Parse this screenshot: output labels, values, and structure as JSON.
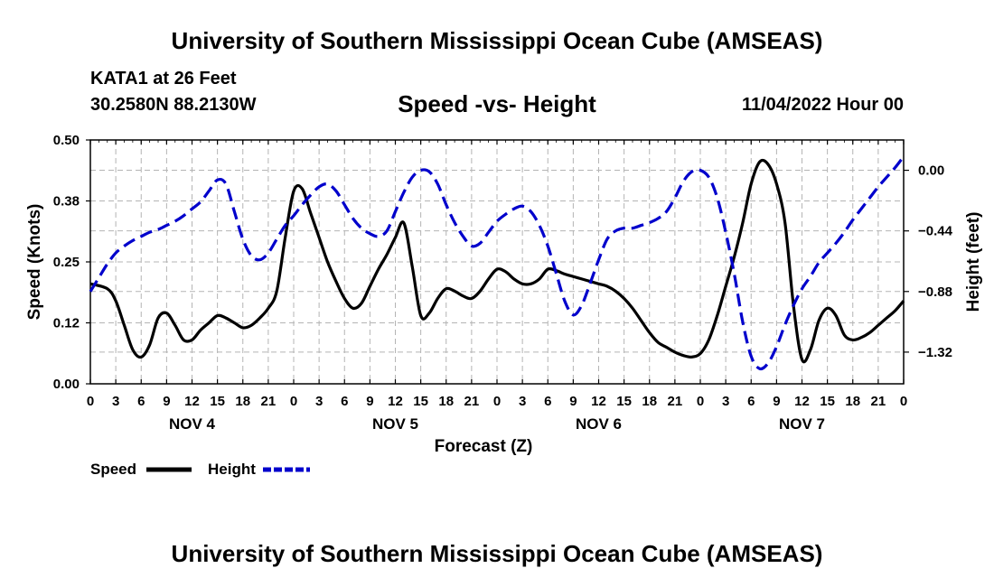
{
  "header": {
    "title": "University of Southern Mississippi Ocean Cube (AMSEAS)",
    "station": "KATA1 at 26 Feet",
    "location": "30.2580N  88.2130W",
    "chart_title": "Speed -vs- Height",
    "issued": "11/04/2022 Hour 00"
  },
  "footer": {
    "title": "University of Southern Mississippi Ocean Cube (AMSEAS)"
  },
  "chart_data": {
    "type": "line",
    "title": "Speed -vs- Height",
    "xlabel": "Forecast (Z)",
    "ylabel": "Speed (Knots)",
    "y2label": "Height (feet)",
    "x_range_hours": [
      0,
      96
    ],
    "xticks_hours": [
      0,
      3,
      6,
      9,
      12,
      15,
      18,
      21,
      24,
      27,
      30,
      33,
      36,
      39,
      42,
      45,
      48,
      51,
      54,
      57,
      60,
      63,
      66,
      69,
      72,
      75,
      78,
      81,
      84,
      87,
      90,
      93,
      96
    ],
    "xtick_labels": [
      "0",
      "3",
      "6",
      "9",
      "12",
      "15",
      "18",
      "21",
      "0",
      "3",
      "6",
      "9",
      "12",
      "15",
      "18",
      "21",
      "0",
      "3",
      "6",
      "9",
      "12",
      "15",
      "18",
      "21",
      "0",
      "3",
      "6",
      "9",
      "12",
      "15",
      "18",
      "21",
      "0"
    ],
    "day_labels": [
      {
        "hour": 12,
        "label": "NOV 4"
      },
      {
        "hour": 36,
        "label": "NOV 5"
      },
      {
        "hour": 60,
        "label": "NOV 6"
      },
      {
        "hour": 84,
        "label": "NOV 7"
      }
    ],
    "y_left": {
      "range": [
        0,
        0.5
      ],
      "ticks": [
        0.0,
        0.125,
        0.25,
        0.375,
        0.5
      ],
      "tick_labels": [
        "0.00",
        "0.12",
        "0.25",
        "0.38",
        "0.50"
      ]
    },
    "y_right": {
      "range": [
        -1.55,
        0.22
      ],
      "ticks": [
        0.0,
        -0.44,
        -0.88,
        -1.32
      ],
      "tick_labels": [
        "0.00",
        "-0.44",
        "-0.88",
        "-1.32"
      ]
    },
    "grid": true,
    "legend": {
      "position": "bottom-left",
      "entries": [
        "Speed",
        "Height"
      ]
    },
    "series": [
      {
        "name": "Speed",
        "axis": "left",
        "color": "#000000",
        "style": "solid",
        "x": [
          0,
          2,
          3,
          4,
          5,
          6,
          7,
          8,
          9,
          10,
          11,
          12,
          13,
          14,
          15,
          16,
          17,
          18,
          19,
          20,
          21,
          22,
          23,
          24,
          25,
          26,
          27,
          28,
          29,
          30,
          31,
          32,
          33,
          34,
          35,
          36,
          37,
          38,
          39,
          40,
          41,
          42,
          43,
          44,
          45,
          46,
          47,
          48,
          49,
          50,
          51,
          52,
          53,
          54,
          55,
          56,
          57,
          58,
          59,
          60,
          61,
          62,
          63,
          64,
          65,
          66,
          67,
          68,
          69,
          70,
          71,
          72,
          73,
          74,
          75,
          76,
          77,
          78,
          79,
          80,
          81,
          82,
          83,
          84,
          85,
          86,
          87,
          88,
          89,
          90,
          91,
          92,
          93,
          94,
          95,
          96
        ],
        "values": [
          0.205,
          0.195,
          0.17,
          0.12,
          0.07,
          0.055,
          0.08,
          0.135,
          0.145,
          0.12,
          0.09,
          0.09,
          0.11,
          0.125,
          0.14,
          0.135,
          0.125,
          0.115,
          0.12,
          0.135,
          0.155,
          0.19,
          0.3,
          0.395,
          0.4,
          0.35,
          0.3,
          0.25,
          0.21,
          0.175,
          0.155,
          0.165,
          0.2,
          0.235,
          0.265,
          0.3,
          0.33,
          0.24,
          0.14,
          0.145,
          0.175,
          0.195,
          0.19,
          0.18,
          0.175,
          0.19,
          0.215,
          0.235,
          0.23,
          0.215,
          0.205,
          0.205,
          0.215,
          0.235,
          0.232,
          0.225,
          0.22,
          0.215,
          0.21,
          0.205,
          0.2,
          0.19,
          0.175,
          0.155,
          0.13,
          0.105,
          0.085,
          0.075,
          0.065,
          0.058,
          0.055,
          0.062,
          0.09,
          0.14,
          0.2,
          0.26,
          0.33,
          0.41,
          0.455,
          0.45,
          0.41,
          0.33,
          0.16,
          0.05,
          0.07,
          0.13,
          0.155,
          0.14,
          0.1,
          0.09,
          0.095,
          0.105,
          0.12,
          0.135,
          0.15,
          0.17
        ]
      },
      {
        "name": "Height",
        "axis": "right",
        "color": "#0000cc",
        "style": "dashed",
        "x": [
          0,
          1,
          2,
          3,
          4,
          5,
          6,
          7,
          8,
          9,
          10,
          11,
          12,
          13,
          14,
          15,
          16,
          17,
          18,
          19,
          20,
          21,
          22,
          23,
          24,
          25,
          26,
          27,
          28,
          29,
          30,
          31,
          32,
          33,
          34,
          35,
          36,
          37,
          38,
          39,
          40,
          41,
          42,
          43,
          44,
          45,
          46,
          47,
          48,
          49,
          50,
          51,
          52,
          53,
          54,
          55,
          56,
          57,
          58,
          59,
          60,
          61,
          62,
          63,
          64,
          65,
          66,
          67,
          68,
          69,
          70,
          71,
          72,
          73,
          74,
          75,
          76,
          77,
          78,
          79,
          80,
          81,
          82,
          83,
          84,
          85,
          86,
          87,
          88,
          89,
          90,
          91,
          92,
          93,
          94,
          95,
          96
        ],
        "values": [
          -0.88,
          -0.78,
          -0.68,
          -0.6,
          -0.55,
          -0.51,
          -0.48,
          -0.45,
          -0.43,
          -0.4,
          -0.37,
          -0.33,
          -0.28,
          -0.23,
          -0.15,
          -0.07,
          -0.1,
          -0.3,
          -0.5,
          -0.62,
          -0.65,
          -0.6,
          -0.5,
          -0.4,
          -0.33,
          -0.25,
          -0.18,
          -0.12,
          -0.1,
          -0.15,
          -0.25,
          -0.35,
          -0.42,
          -0.46,
          -0.48,
          -0.44,
          -0.3,
          -0.16,
          -0.05,
          0.0,
          -0.01,
          -0.1,
          -0.25,
          -0.38,
          -0.48,
          -0.55,
          -0.53,
          -0.45,
          -0.37,
          -0.32,
          -0.28,
          -0.26,
          -0.3,
          -0.4,
          -0.55,
          -0.75,
          -0.95,
          -1.05,
          -0.98,
          -0.82,
          -0.65,
          -0.5,
          -0.44,
          -0.42,
          -0.42,
          -0.4,
          -0.38,
          -0.35,
          -0.3,
          -0.2,
          -0.08,
          -0.01,
          0.0,
          -0.05,
          -0.2,
          -0.45,
          -0.75,
          -1.1,
          -1.35,
          -1.44,
          -1.4,
          -1.28,
          -1.12,
          -0.98,
          -0.86,
          -0.77,
          -0.67,
          -0.6,
          -0.53,
          -0.45,
          -0.36,
          -0.28,
          -0.2,
          -0.12,
          -0.05,
          0.02,
          0.1
        ]
      }
    ]
  }
}
